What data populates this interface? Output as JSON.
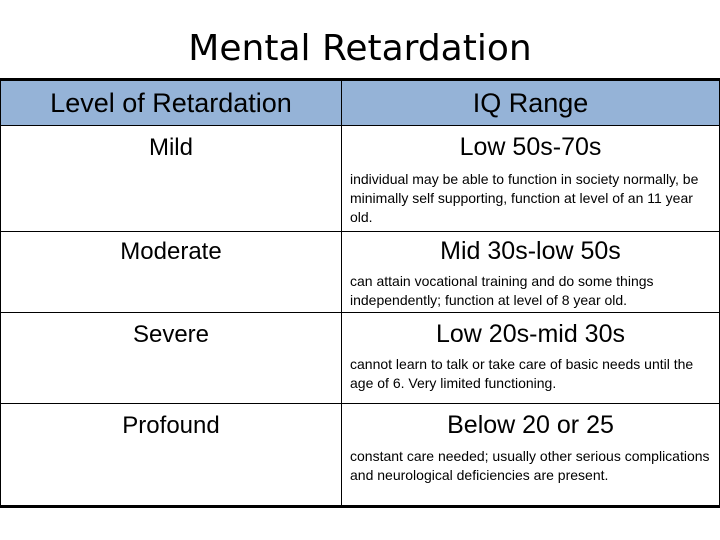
{
  "title": "Mental Retardation",
  "header": {
    "level": "Level of Retardation",
    "range": "IQ Range"
  },
  "rows": [
    {
      "level": "Mild",
      "range": "Low 50s-70s",
      "description": "individual may be able to function in society normally, be minimally self supporting, function at level of an 11 year old."
    },
    {
      "level": "Moderate",
      "range": "Mid 30s-low 50s",
      "description": "can attain vocational training and do some things independently; function at level of 8 year old."
    },
    {
      "level": "Severe",
      "range": "Low 20s-mid 30s",
      "description": "cannot learn to talk or take care of basic needs until the age of 6.  Very limited functioning."
    },
    {
      "level": "Profound",
      "range": "Below 20 or 25",
      "description": "constant care needed; usually other serious complications and neurological deficiencies are present."
    }
  ]
}
